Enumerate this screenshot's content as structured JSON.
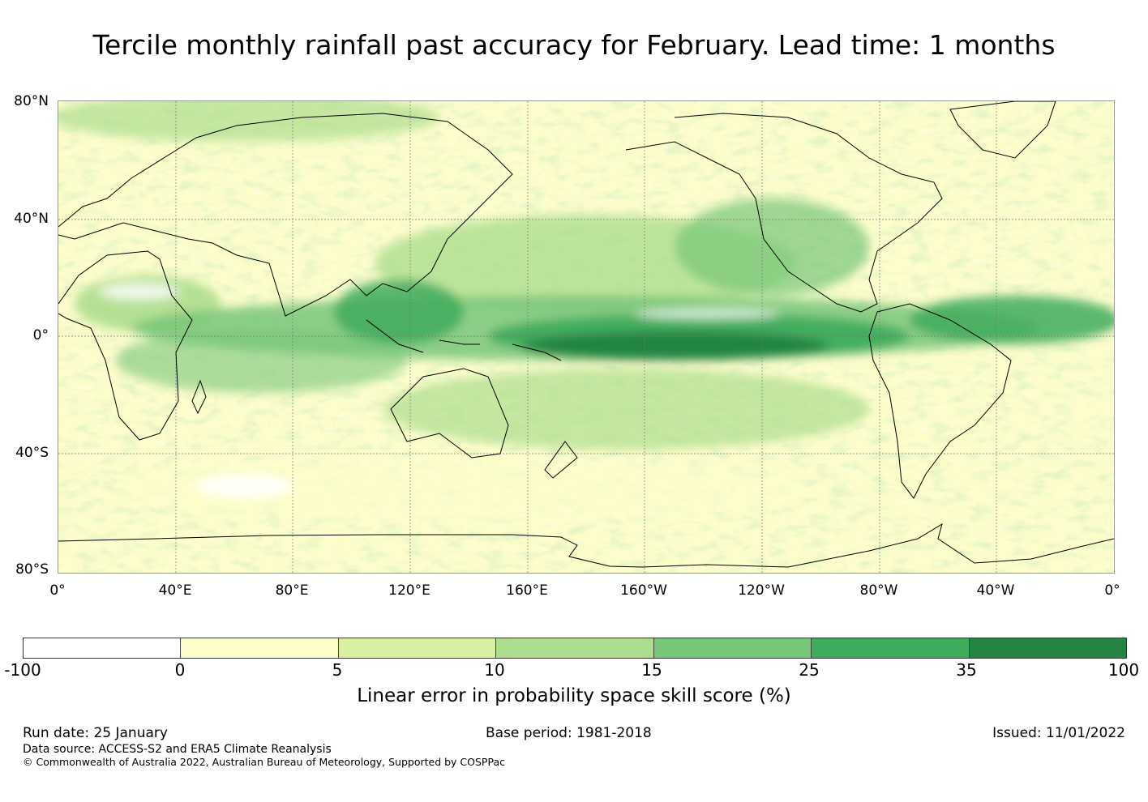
{
  "title": "Tercile monthly rainfall past accuracy for February. Lead time: 1 months",
  "map": {
    "lat_labels": [
      "80°N",
      "40°N",
      "0°",
      "40°S",
      "80°S"
    ],
    "lon_labels": [
      "0°",
      "40°E",
      "80°E",
      "120°E",
      "160°E",
      "160°W",
      "120°W",
      "80°W",
      "40°W",
      "0°"
    ],
    "lon_range": [
      0,
      360
    ],
    "lat_range": [
      -80,
      80
    ]
  },
  "colorbar": {
    "ticks": [
      "-100",
      "0",
      "5",
      "10",
      "15",
      "25",
      "35",
      "100"
    ],
    "colors": [
      "#ffffff",
      "#fdfdcb",
      "#d9efa2",
      "#addd8e",
      "#78c679",
      "#41ab5d",
      "#238443"
    ],
    "label": "Linear error in probability space skill score (%)"
  },
  "footer": {
    "run_date": "Run date: 25 January",
    "base_period": "Base period: 1981-2018",
    "issued": "Issued: 11/01/2022",
    "data_source": "Data source: ACCESS-S2 and ERA5 Climate Reanalysis",
    "copyright": "© Commonwealth of Australia 2022, Australian Bureau of Meteorology, Supported by COSPPac"
  }
}
